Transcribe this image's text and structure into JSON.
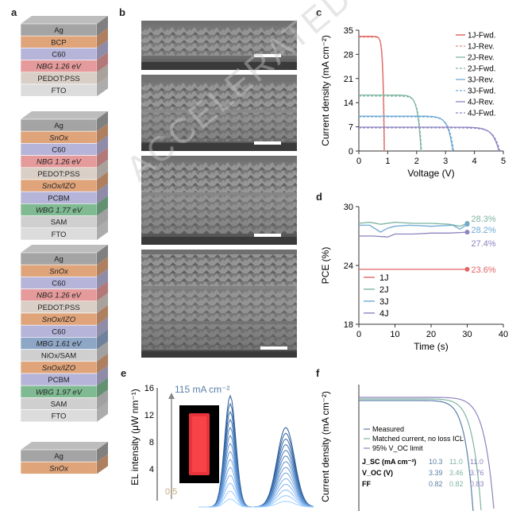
{
  "panels": {
    "a": "a",
    "b": "b",
    "c": "c",
    "d": "d",
    "e": "e",
    "f": "f"
  },
  "panel_a": {
    "stacks": [
      {
        "layers": [
          {
            "label": "Ag",
            "color": "#a4a4a4",
            "italic": false
          },
          {
            "label": "BCP",
            "color": "#e0a47a",
            "italic": false
          },
          {
            "label": "C60",
            "color": "#b6b4d9",
            "italic": false
          },
          {
            "label": "NBG 1.26 eV",
            "color": "#e59b9b",
            "italic": true
          },
          {
            "label": "PEDOT:PSS",
            "color": "#d9cfc7",
            "italic": false
          },
          {
            "label": "FTO",
            "color": "#dcdcdc",
            "italic": false
          }
        ]
      },
      {
        "layers": [
          {
            "label": "Ag",
            "color": "#a4a4a4",
            "italic": false
          },
          {
            "label": "SnOx",
            "color": "#e0a47a",
            "italic": true
          },
          {
            "label": "C60",
            "color": "#b6b4d9",
            "italic": false
          },
          {
            "label": "NBG 1.26 eV",
            "color": "#e59b9b",
            "italic": true
          },
          {
            "label": "PEDOT:PSS",
            "color": "#d9cfc7",
            "italic": false
          },
          {
            "label": "SnOx/IZO",
            "color": "#e0a47a",
            "italic": true
          },
          {
            "label": "PCBM",
            "color": "#b6b4d9",
            "italic": false
          },
          {
            "label": "WBG 1.77 eV",
            "color": "#7fba92",
            "italic": true
          },
          {
            "label": "SAM",
            "color": "#cfcfcf",
            "italic": false
          },
          {
            "label": "FTO",
            "color": "#dcdcdc",
            "italic": false
          }
        ]
      },
      {
        "layers": [
          {
            "label": "Ag",
            "color": "#a4a4a4",
            "italic": false
          },
          {
            "label": "SnOx",
            "color": "#e0a47a",
            "italic": true
          },
          {
            "label": "C60",
            "color": "#b6b4d9",
            "italic": false
          },
          {
            "label": "NBG 1.26 eV",
            "color": "#e59b9b",
            "italic": true
          },
          {
            "label": "PEDOT:PSS",
            "color": "#d9cfc7",
            "italic": false
          },
          {
            "label": "SnOx/IZO",
            "color": "#e0a47a",
            "italic": true
          },
          {
            "label": "C60",
            "color": "#b6b4d9",
            "italic": false
          },
          {
            "label": "MBG 1.61 eV",
            "color": "#8fa7c7",
            "italic": true
          },
          {
            "label": "NiOx/SAM",
            "color": "#cfcfcf",
            "italic": false
          },
          {
            "label": "SnOx/IZO",
            "color": "#e0a47a",
            "italic": true
          },
          {
            "label": "PCBM",
            "color": "#b6b4d9",
            "italic": false
          },
          {
            "label": "WBG 1.97 eV",
            "color": "#7fba92",
            "italic": true
          },
          {
            "label": "SAM",
            "color": "#cfcfcf",
            "italic": false
          },
          {
            "label": "FTO",
            "color": "#dcdcdc",
            "italic": false
          }
        ]
      },
      {
        "layers": [
          {
            "label": "Ag",
            "color": "#a4a4a4",
            "italic": false
          },
          {
            "label": "SnOx",
            "color": "#e0a47a",
            "italic": true
          }
        ]
      }
    ]
  },
  "panel_e": {
    "ylabel": "EL intensity (μW nm⁻¹)",
    "yticks": [
      "16",
      "12",
      "8",
      "4"
    ],
    "current_top": "115 mA cm⁻²",
    "current_bottom": "0.5"
  },
  "panel_f": {
    "ylabel": "Current density (mA cm⁻²)",
    "legend": [
      "Measured",
      "Matched current, no loss ICL",
      "95% V_OC limit"
    ],
    "table": [
      {
        "param": "J_SC (mA cm⁻²)",
        "values": [
          "10.3",
          "11.0",
          "11.0"
        ]
      },
      {
        "param": "V_OC (V)",
        "values": [
          "3.39",
          "3.46",
          "3.76"
        ]
      },
      {
        "param": "FF",
        "values": [
          "0.82",
          "0.82",
          "0.83"
        ]
      }
    ]
  },
  "watermark": "ACCELERATED ARTICLE PREVIEW",
  "chart_data": [
    {
      "panel": "c",
      "type": "line",
      "xlabel": "Voltage (V)",
      "ylabel": "Current density (mA cm⁻²)",
      "xlim": [
        0,
        5
      ],
      "ylim": [
        0,
        35
      ],
      "xticks": [
        0,
        1,
        2,
        3,
        4,
        5
      ],
      "yticks": [
        0,
        7,
        14,
        21,
        28,
        35
      ],
      "legend": "top-right",
      "series": [
        {
          "name": "1J-Fwd.",
          "color": "#d9534f",
          "dash": false,
          "jsc": 33.2,
          "voc": 0.88,
          "n": 0.045
        },
        {
          "name": "1J-Rev.",
          "color": "#e58a87",
          "dash": true,
          "jsc": 33.0,
          "voc": 0.89,
          "n": 0.045
        },
        {
          "name": "2J-Rev.",
          "color": "#7fb5a0",
          "dash": false,
          "jsc": 16.2,
          "voc": 2.15,
          "n": 0.11
        },
        {
          "name": "2J-Fwd.",
          "color": "#7fb5a0",
          "dash": true,
          "jsc": 15.9,
          "voc": 2.17,
          "n": 0.11
        },
        {
          "name": "3J-Rev.",
          "color": "#6fa9d4",
          "dash": false,
          "jsc": 10.1,
          "voc": 3.25,
          "n": 0.16
        },
        {
          "name": "3J-Fwd.",
          "color": "#6fa9d4",
          "dash": true,
          "jsc": 9.9,
          "voc": 3.28,
          "n": 0.16
        },
        {
          "name": "4J-Rev.",
          "color": "#8b84c0",
          "dash": false,
          "jsc": 6.9,
          "voc": 4.85,
          "n": 0.21
        },
        {
          "name": "4J-Fwd.",
          "color": "#8b84c0",
          "dash": true,
          "jsc": 6.7,
          "voc": 4.88,
          "n": 0.21
        }
      ]
    },
    {
      "panel": "d",
      "type": "line",
      "xlabel": "Time (s)",
      "ylabel": "PCE (%)",
      "xlim": [
        0,
        40
      ],
      "ylim": [
        18,
        30
      ],
      "xticks": [
        0,
        10,
        20,
        30,
        40
      ],
      "yticks": [
        18,
        24,
        30
      ],
      "legend": "left",
      "series": [
        {
          "name": "1J",
          "color": "#e06666",
          "end_label": "23.6%",
          "x": [
            0,
            5,
            10,
            15,
            20,
            25,
            30
          ],
          "y": [
            23.6,
            23.6,
            23.6,
            23.6,
            23.6,
            23.6,
            23.6
          ]
        },
        {
          "name": "2J",
          "color": "#7fb5a0",
          "end_label": "28.3%",
          "x": [
            0,
            3,
            6,
            10,
            15,
            20,
            25,
            28,
            30
          ],
          "y": [
            28.3,
            28.4,
            28.2,
            28.4,
            28.3,
            28.3,
            28.2,
            28.0,
            28.3
          ]
        },
        {
          "name": "3J",
          "color": "#6fa9d4",
          "end_label": "28.2%",
          "x": [
            0,
            3,
            6,
            8,
            10,
            14,
            20,
            26,
            28,
            30
          ],
          "y": [
            28.1,
            28.1,
            27.4,
            27.8,
            28.0,
            28.1,
            28.0,
            28.1,
            27.7,
            28.2
          ]
        },
        {
          "name": "4J",
          "color": "#8b84c0",
          "end_label": "27.4%",
          "x": [
            0,
            4,
            8,
            10,
            15,
            20,
            25,
            30
          ],
          "y": [
            27.0,
            27.0,
            26.9,
            27.2,
            27.2,
            27.3,
            27.3,
            27.4
          ]
        }
      ]
    }
  ]
}
